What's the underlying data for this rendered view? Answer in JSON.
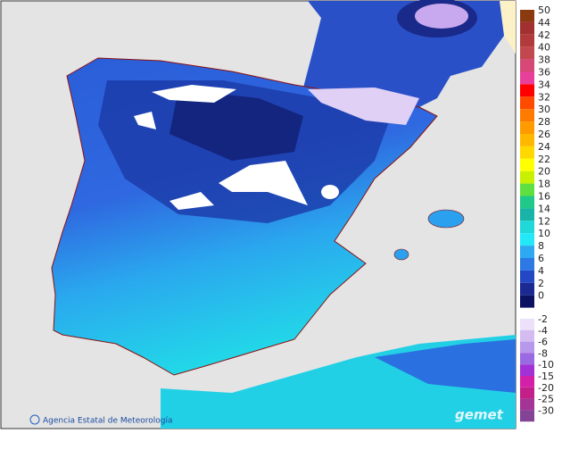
{
  "map": {
    "credit": "Agencia Estatal de Meteorología",
    "logo": "gemet",
    "legend_positive": [
      {
        "value": 50,
        "color": "#8b3a10"
      },
      {
        "value": 44,
        "color": "#a33030"
      },
      {
        "value": 42,
        "color": "#b23a3a"
      },
      {
        "value": 40,
        "color": "#c24850"
      },
      {
        "value": 38,
        "color": "#d54878"
      },
      {
        "value": 36,
        "color": "#e8409a"
      },
      {
        "value": 34,
        "color": "#ff0000"
      },
      {
        "value": 32,
        "color": "#ff4a00"
      },
      {
        "value": 30,
        "color": "#ff7a00"
      },
      {
        "value": 28,
        "color": "#ff9a00"
      },
      {
        "value": 26,
        "color": "#ffb800"
      },
      {
        "value": 24,
        "color": "#ffd800"
      },
      {
        "value": 22,
        "color": "#ffff00"
      },
      {
        "value": 20,
        "color": "#c8f000"
      },
      {
        "value": 18,
        "color": "#60e040"
      },
      {
        "value": 16,
        "color": "#20c88a"
      },
      {
        "value": 14,
        "color": "#18b4a8"
      },
      {
        "value": 12,
        "color": "#20d8d8"
      },
      {
        "value": 10,
        "color": "#22e8f8"
      },
      {
        "value": 8,
        "color": "#2ea8f0"
      },
      {
        "value": 6,
        "color": "#2c78e4"
      },
      {
        "value": 4,
        "color": "#2448c4"
      },
      {
        "value": 2,
        "color": "#1a2a92"
      },
      {
        "value": 0,
        "color": "#0c1262"
      }
    ],
    "legend_negative": [
      {
        "value": -2,
        "color": "#ece0fa"
      },
      {
        "value": -4,
        "color": "#d4bcf2"
      },
      {
        "value": -6,
        "color": "#b898ea"
      },
      {
        "value": -8,
        "color": "#9a6ae2"
      },
      {
        "value": -10,
        "color": "#a232d6"
      },
      {
        "value": -15,
        "color": "#d420a8"
      },
      {
        "value": -20,
        "color": "#c22088"
      },
      {
        "value": -25,
        "color": "#a43496"
      },
      {
        "value": -30,
        "color": "#844496"
      }
    ]
  }
}
